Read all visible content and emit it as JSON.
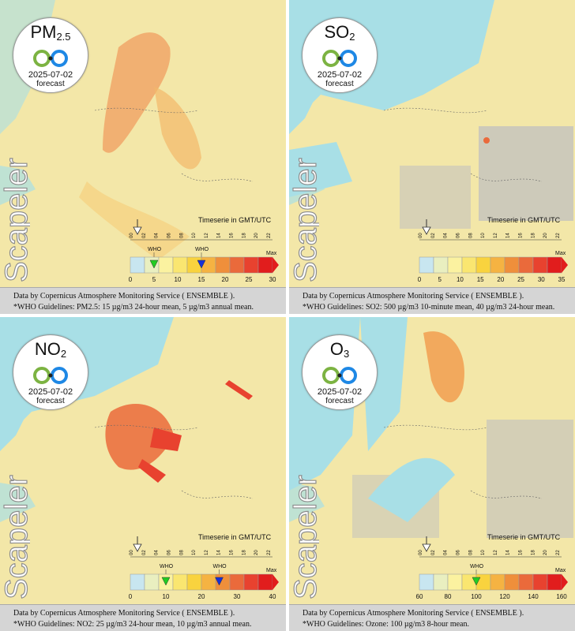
{
  "brand": "Scapeler",
  "timeseries_label": "Timeserie in GMT/UTC",
  "forecast_label": "forecast",
  "hours": [
    "00",
    "02",
    "04",
    "06",
    "08",
    "10",
    "12",
    "14",
    "16",
    "18",
    "20",
    "22"
  ],
  "colors": {
    "map_base": "#f3e7a8",
    "sea": "#a8dfe6",
    "land_gray": "#c0c0c0",
    "scale": [
      "#c8e6f0",
      "#e9efc0",
      "#fbf2a0",
      "#fae670",
      "#f9d33e",
      "#f5b342",
      "#ef8f3b",
      "#ea6a3b",
      "#e8422f",
      "#e11d1d"
    ]
  },
  "panels": [
    {
      "pollutant": "PM",
      "pollutant_sub": "2.5",
      "date": "2025-07-02",
      "scale_ticks": [
        "0",
        "5",
        "10",
        "15",
        "20",
        "25",
        "30"
      ],
      "max_label": "Max",
      "who_labels": [
        "WHO",
        "WHO"
      ],
      "who_markers": [
        {
          "value": 5,
          "color": "#22cc22"
        },
        {
          "value": 15,
          "color": "#1630d8"
        }
      ],
      "scale_max": 30,
      "caption_source": "Data by Copernicus Atmosphere Monitoring Service ( ENSEMBLE ).",
      "caption_who": "*WHO Guidelines: PM2.5: 15 µg/m3 24-hour mean, 5 µg/m3 annual mean."
    },
    {
      "pollutant": "SO",
      "pollutant_sub": "2",
      "date": "2025-07-02",
      "scale_ticks": [
        "0",
        "5",
        "10",
        "15",
        "20",
        "25",
        "30",
        "35"
      ],
      "max_label": "Max",
      "who_labels": [],
      "who_markers": [],
      "scale_max": 35,
      "caption_source": "Data by Copernicus Atmosphere Monitoring Service ( ENSEMBLE ).",
      "caption_who": "*WHO Guidelines: SO2: 500 µg/m3 10-minute mean, 40 µg/m3 24-hour mean."
    },
    {
      "pollutant": "NO",
      "pollutant_sub": "2",
      "date": "2025-07-02",
      "scale_ticks": [
        "0",
        "10",
        "20",
        "30",
        "40"
      ],
      "max_label": "Max",
      "who_labels": [
        "WHO",
        "WHO"
      ],
      "who_markers": [
        {
          "value": 10,
          "color": "#22cc22"
        },
        {
          "value": 25,
          "color": "#1630d8"
        }
      ],
      "scale_max": 40,
      "caption_source": "Data by Copernicus Atmosphere Monitoring Service ( ENSEMBLE ).",
      "caption_who": "*WHO Guidelines: NO2: 25 µg/m3 24-hour mean, 10 µg/m3 annual mean."
    },
    {
      "pollutant": "O",
      "pollutant_sub": "3",
      "date": "2025-07-02",
      "scale_ticks": [
        "60",
        "80",
        "100",
        "120",
        "140",
        "160"
      ],
      "max_label": "Max",
      "who_labels": [
        "WHO"
      ],
      "who_markers": [
        {
          "value": 100,
          "color": "#22cc22"
        }
      ],
      "scale_max": 160,
      "caption_source": "Data by Copernicus Atmosphere Monitoring Service ( ENSEMBLE ).",
      "caption_who": "*WHO Guidelines: Ozone: 100 µg/m3 8-hour mean."
    }
  ]
}
